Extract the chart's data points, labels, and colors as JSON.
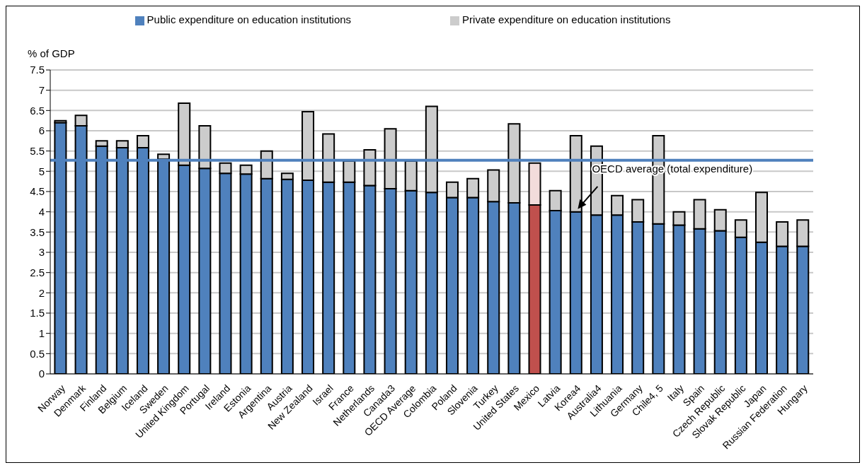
{
  "chart_data": {
    "type": "bar",
    "stacked": true,
    "ylabel": "% of GDP",
    "categories": [
      "Norway",
      "Denmark",
      "Finland",
      "Belgium",
      "Iceland",
      "Sweden",
      "United Kingdom",
      "Portugal",
      "Ireland",
      "Estonia",
      "Argentina",
      "Austria",
      "New Zealand",
      "Israel",
      "France",
      "Netherlands",
      "Canada3",
      "OECD Average",
      "Colombia",
      "Poland",
      "Slovenia",
      "Turkey",
      "United States",
      "Mexico",
      "Latvia",
      "Korea4",
      "Australia4",
      "Lithuania",
      "Germany",
      "Chile4, 5",
      "Italy",
      "Spain",
      "Czech Republic",
      "Slovak Republic",
      "Japan",
      "Russian Federation",
      "Hungary"
    ],
    "series": [
      {
        "name": "Public expenditure on education institutions",
        "color": "#4f81bd",
        "colors": [
          "#4f81bd",
          "#4f81bd",
          "#4f81bd",
          "#4f81bd",
          "#4f81bd",
          "#4f81bd",
          "#4f81bd",
          "#4f81bd",
          "#4f81bd",
          "#4f81bd",
          "#4f81bd",
          "#4f81bd",
          "#4f81bd",
          "#4f81bd",
          "#4f81bd",
          "#4f81bd",
          "#4f81bd",
          "#4f81bd",
          "#4f81bd",
          "#4f81bd",
          "#4f81bd",
          "#4f81bd",
          "#4f81bd",
          "#c0504d",
          "#4f81bd",
          "#4f81bd",
          "#4f81bd",
          "#4f81bd",
          "#4f81bd",
          "#4f81bd",
          "#4f81bd",
          "#4f81bd",
          "#4f81bd",
          "#4f81bd",
          "#4f81bd",
          "#4f81bd",
          "#4f81bd"
        ],
        "values": [
          6.2,
          6.12,
          5.62,
          5.58,
          5.58,
          5.3,
          5.15,
          5.07,
          4.95,
          4.93,
          4.82,
          4.8,
          4.78,
          4.73,
          4.73,
          4.65,
          4.57,
          4.52,
          4.48,
          4.35,
          4.35,
          4.25,
          4.22,
          4.17,
          4.03,
          4.0,
          3.92,
          3.92,
          3.75,
          3.7,
          3.67,
          3.58,
          3.53,
          3.37,
          3.25,
          3.15,
          3.15
        ]
      },
      {
        "name": "Private expenditure on education institutions",
        "color": "#cccccc",
        "colors": [
          "#cccccc",
          "#cccccc",
          "#cccccc",
          "#cccccc",
          "#cccccc",
          "#cccccc",
          "#cccccc",
          "#cccccc",
          "#cccccc",
          "#cccccc",
          "#cccccc",
          "#cccccc",
          "#cccccc",
          "#cccccc",
          "#cccccc",
          "#cccccc",
          "#cccccc",
          "#cccccc",
          "#cccccc",
          "#cccccc",
          "#cccccc",
          "#cccccc",
          "#cccccc",
          "#f2dcdb",
          "#cccccc",
          "#cccccc",
          "#cccccc",
          "#cccccc",
          "#cccccc",
          "#cccccc",
          "#cccccc",
          "#cccccc",
          "#cccccc",
          "#cccccc",
          "#cccccc",
          "#cccccc",
          "#cccccc"
        ],
        "values": [
          0.05,
          0.26,
          0.13,
          0.17,
          0.3,
          0.12,
          1.53,
          1.05,
          0.25,
          0.22,
          0.68,
          0.15,
          1.69,
          1.19,
          0.52,
          0.88,
          1.48,
          0.73,
          2.12,
          0.38,
          0.47,
          0.78,
          1.95,
          1.03,
          0.49,
          1.88,
          1.7,
          0.48,
          0.55,
          2.18,
          0.33,
          0.72,
          0.52,
          0.43,
          1.23,
          0.6,
          0.65
        ]
      }
    ],
    "ylim": [
      0,
      7.5
    ],
    "yticks": [
      0,
      0.5,
      1,
      1.5,
      2,
      2.5,
      3,
      3.5,
      4,
      4.5,
      5,
      5.5,
      6,
      6.5,
      7,
      7.5
    ],
    "grid": "y",
    "legend": "top",
    "ref_lines": [
      {
        "axis": "y",
        "value": 5.27,
        "label": "OECD average (total expenditure)",
        "color": "#4f81bd"
      }
    ]
  }
}
